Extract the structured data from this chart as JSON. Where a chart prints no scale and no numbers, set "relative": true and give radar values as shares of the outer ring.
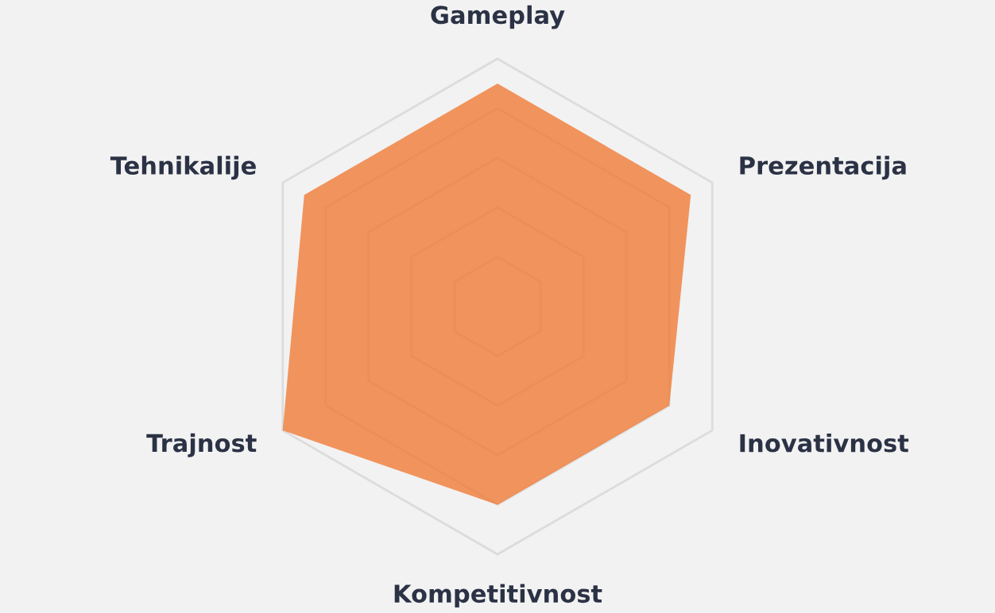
{
  "chart_data": {
    "type": "radar",
    "relative": true,
    "grid": true,
    "legend": false,
    "categories": [
      "Gameplay",
      "Prezentacija",
      "Inovativnost",
      "Kompetitivnost",
      "Trajnost",
      "Tehnikalije"
    ],
    "series": [
      {
        "color": "#f07b36",
        "values": [
          0.9,
          0.9,
          0.8,
          0.8,
          1.0,
          0.9
        ]
      }
    ]
  }
}
